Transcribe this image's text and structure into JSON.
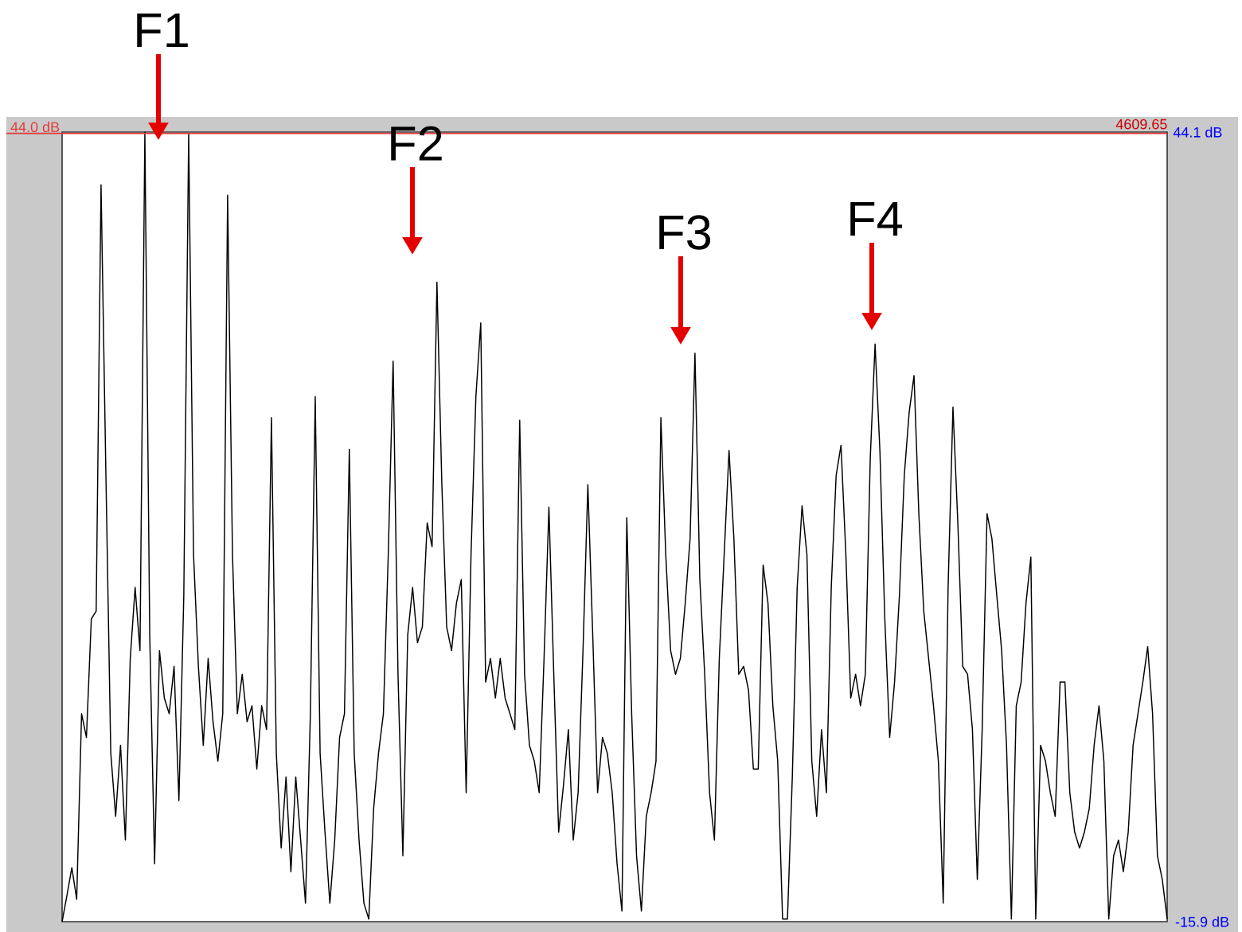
{
  "chart_data": {
    "type": "line",
    "categories": [
      null,
      null,
      null,
      null,
      null,
      null,
      null,
      null,
      null,
      null,
      null,
      null,
      null,
      null,
      null,
      null,
      null,
      null,
      null,
      null,
      null,
      null,
      null,
      null,
      null,
      null,
      null,
      null,
      null,
      null,
      null,
      null,
      null,
      null,
      null,
      null,
      null,
      null,
      null,
      null,
      null,
      null,
      null,
      null,
      null,
      null,
      null,
      null,
      null,
      null,
      null,
      null,
      null,
      null,
      null,
      null,
      null,
      null,
      null,
      null,
      null,
      null,
      null,
      null,
      null,
      null,
      null,
      null,
      null,
      null,
      null,
      null,
      null,
      null,
      null,
      null,
      null,
      null,
      null,
      null,
      null,
      null,
      null,
      null,
      null,
      null,
      null,
      null,
      null,
      null,
      null,
      null,
      null,
      null,
      null,
      null,
      null,
      null,
      null,
      null,
      null,
      null,
      null,
      null,
      null,
      null,
      null,
      null,
      null,
      null,
      null,
      null,
      null,
      null,
      null,
      null,
      null,
      null,
      null,
      null,
      null,
      null,
      null,
      null,
      null,
      null,
      null,
      null,
      null,
      null,
      null,
      null,
      null,
      null,
      null,
      null,
      null,
      null,
      null,
      null,
      null,
      null,
      null,
      null,
      null,
      null,
      null,
      null,
      null,
      null,
      null,
      null,
      null,
      null,
      null,
      null,
      null,
      null,
      null,
      null,
      null,
      null,
      null,
      null,
      null,
      null,
      null,
      null,
      null,
      null,
      null,
      null,
      null,
      null,
      null,
      null,
      null,
      null,
      null,
      null,
      null,
      null,
      null,
      null,
      null,
      null,
      null,
      null,
      null,
      null,
      null,
      null,
      null,
      null,
      null,
      null,
      null,
      null,
      null,
      null,
      null,
      null,
      null,
      null,
      null,
      null,
      null,
      null,
      null,
      null,
      null,
      null,
      null,
      null,
      null,
      null,
      null,
      null,
      null,
      null,
      null,
      null,
      null,
      null,
      null,
      null,
      null,
      null
    ],
    "series": [
      {
        "color": "#000000",
        "values": [
          -15.9,
          -13.9,
          -11.8,
          -14.2,
          -0.1,
          -1.9,
          7.1,
          7.7,
          40.1,
          18.0,
          -3.1,
          -7.9,
          -2.5,
          -9.7,
          4.1,
          9.5,
          4.7,
          44.1,
          5.9,
          -11.5,
          4.7,
          1.1,
          -0.1,
          3.5,
          -6.7,
          8.9,
          44.0,
          12.0,
          3.5,
          -2.5,
          4.1,
          -0.7,
          -3.7,
          -0.1,
          39.3,
          12.0,
          -0.1,
          2.9,
          -0.7,
          0.5,
          -4.3,
          0.5,
          -1.3,
          22.4,
          -3.1,
          -10.3,
          -4.9,
          -12.1,
          -4.9,
          -9.7,
          -14.5,
          -0.1,
          24.0,
          -3.1,
          -9.1,
          -14.5,
          -9.7,
          -1.9,
          -0.1,
          20.0,
          -3.1,
          -9.7,
          -14.5,
          -15.7,
          -7.3,
          -3.1,
          -0.1,
          12.0,
          26.7,
          2.9,
          -10.9,
          5.9,
          9.5,
          5.3,
          6.5,
          14.4,
          12.6,
          32.7,
          17.4,
          6.5,
          4.7,
          8.3,
          10.1,
          -6.1,
          12.0,
          24.0,
          29.6,
          2.3,
          4.1,
          1.1,
          4.1,
          1.1,
          -0.1,
          -1.3,
          22.2,
          2.9,
          -2.5,
          -3.7,
          -6.1,
          4.1,
          15.6,
          2.9,
          -9.1,
          -5.5,
          -1.3,
          -9.7,
          -6.1,
          4.7,
          17.3,
          5.9,
          -6.1,
          -1.9,
          -3.1,
          -6.1,
          -11.5,
          -15.1,
          14.8,
          -0.1,
          -10.9,
          -15.1,
          -7.9,
          -6.1,
          -3.7,
          22.4,
          12.0,
          4.7,
          2.9,
          4.1,
          8.3,
          13.2,
          27.3,
          10.1,
          2.9,
          -6.1,
          -9.7,
          4.1,
          12.0,
          19.9,
          13.2,
          2.9,
          3.5,
          1.7,
          -4.3,
          -4.3,
          11.2,
          8.3,
          0.5,
          -3.7,
          -15.7,
          -15.7,
          -4.9,
          9.5,
          15.7,
          12.0,
          -3.7,
          -7.9,
          -1.3,
          -6.1,
          9.5,
          18.0,
          20.3,
          12.0,
          1.1,
          2.9,
          0.5,
          2.9,
          19.2,
          28.0,
          19.8,
          7.1,
          -1.9,
          2.3,
          8.9,
          18.0,
          22.8,
          25.6,
          15.0,
          7.7,
          4.1,
          0.5,
          -3.7,
          -14.5,
          9.5,
          23.2,
          14.4,
          3.5,
          2.9,
          -1.3,
          -12.7,
          -1.3,
          15.1,
          13.2,
          8.9,
          4.7,
          -2.5,
          -15.7,
          0.5,
          2.3,
          8.3,
          11.8,
          -15.7,
          -2.5,
          -3.7,
          -6.1,
          -7.9,
          2.3,
          2.3,
          -6.1,
          -9.1,
          -10.3,
          -9.1,
          -7.3,
          -2.5,
          0.5,
          -3.7,
          -15.7,
          -10.9,
          -9.7,
          -12.1,
          -9.1,
          -2.5,
          -0.1,
          2.3,
          5.0,
          -0.1,
          -10.9,
          -12.7,
          -15.7
        ]
      }
    ],
    "ylim": [
      -15.9,
      44.1
    ],
    "yticks": [
      {
        "value": 44.1,
        "label": "44.1 dB"
      },
      {
        "value": -15.9,
        "label": "-15.9 dB"
      }
    ],
    "tick_labels": "y",
    "ref_lines": [
      {
        "axis": "y",
        "value": 44.0,
        "label": "44.0 dB",
        "color": "#e03c3c"
      }
    ],
    "annotations": [
      "4609.65",
      "F1",
      "F2",
      "F3",
      "F4"
    ]
  }
}
